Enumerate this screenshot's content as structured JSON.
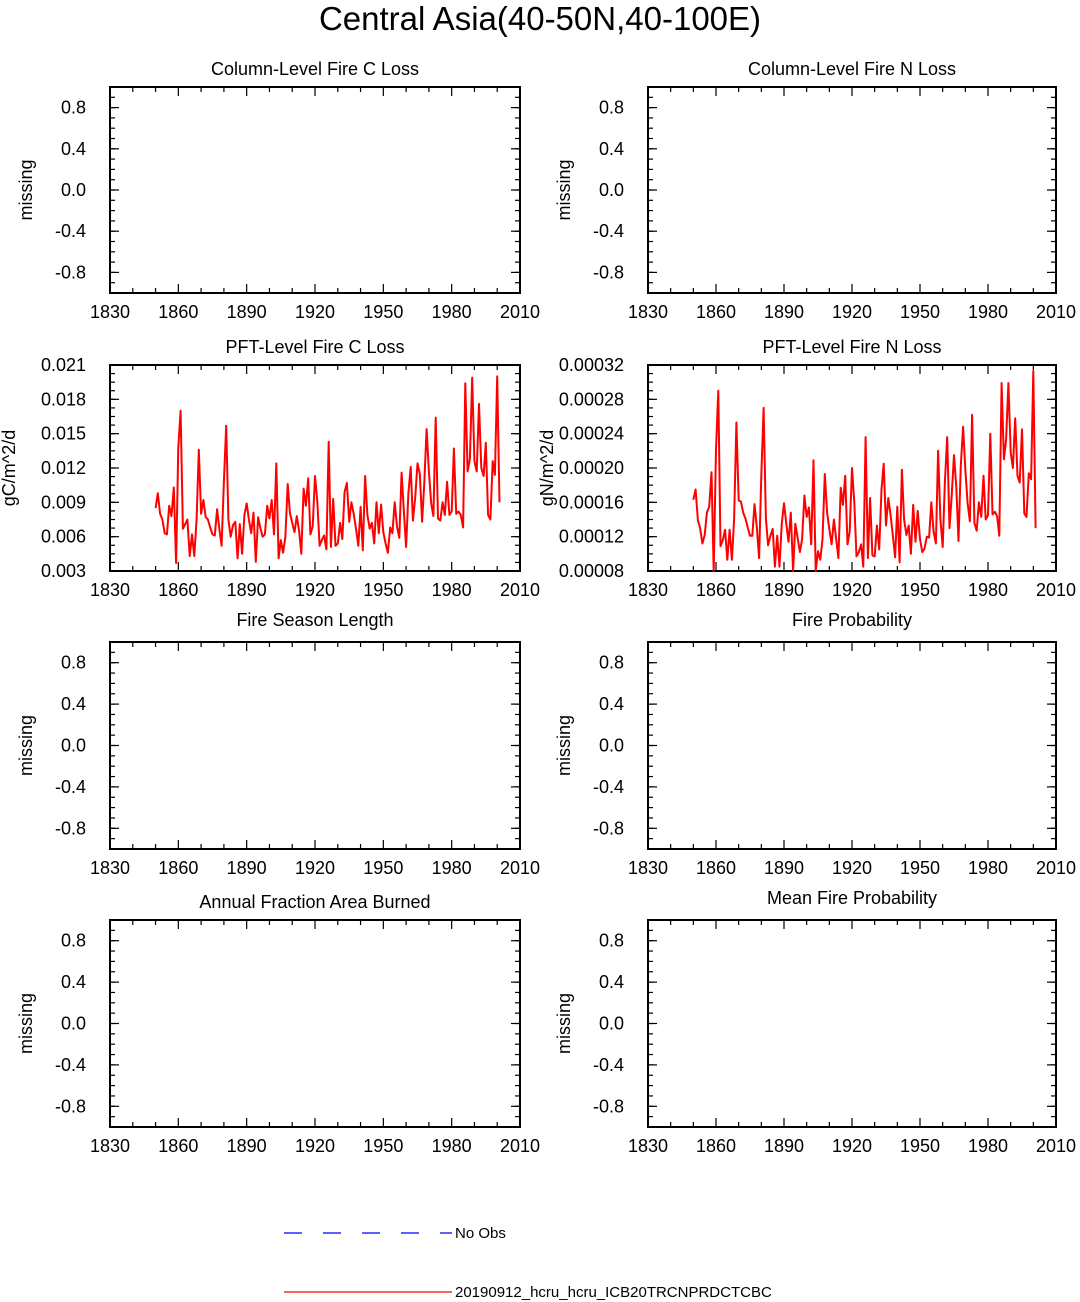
{
  "page_title": "Central Asia(40-50N,40-100E)",
  "legend": {
    "items": [
      {
        "label": "No Obs",
        "color": "#0000ff",
        "style": "dashed"
      },
      {
        "label": "20190912_hcru_hcru_ICB20TRCNPRDCTCBC",
        "color": "#ff0000",
        "style": "solid"
      }
    ]
  },
  "colors": {
    "series": "#ff0000",
    "obs": "#0000ff",
    "axis": "#000000"
  },
  "chart_data": [
    {
      "type": "line",
      "title": "Column-Level Fire C Loss",
      "ylabel": "missing",
      "xlim": [
        1830,
        2010
      ],
      "ylim": [
        -1,
        1
      ],
      "xticks": [
        "1830",
        "1860",
        "1890",
        "1920",
        "1950",
        "1980",
        "2010"
      ],
      "yticks": [
        "0.8",
        "0.4",
        "0.0",
        "-0.4",
        "-0.8"
      ],
      "series": []
    },
    {
      "type": "line",
      "title": "Column-Level Fire N Loss",
      "ylabel": "missing",
      "xlim": [
        1830,
        2010
      ],
      "ylim": [
        -1,
        1
      ],
      "xticks": [
        "1830",
        "1860",
        "1890",
        "1920",
        "1950",
        "1980",
        "2010"
      ],
      "yticks": [
        "0.8",
        "0.4",
        "0.0",
        "-0.4",
        "-0.8"
      ],
      "series": []
    },
    {
      "type": "line",
      "title": "PFT-Level Fire C Loss",
      "ylabel": "gC/m^2/d",
      "xlim": [
        1830,
        2010
      ],
      "ylim": [
        0.003,
        0.021
      ],
      "xticks": [
        "1830",
        "1860",
        "1890",
        "1920",
        "1950",
        "1980",
        "2010"
      ],
      "yticks": [
        "0.021",
        "0.018",
        "0.015",
        "0.012",
        "0.009",
        "0.006",
        "0.003"
      ],
      "x_start": 1850,
      "series": [
        {
          "values": [
            0.0085,
            0.0098,
            0.008,
            0.0075,
            0.0063,
            0.0062,
            0.0087,
            0.0078,
            0.0103,
            0.0037,
            0.0138,
            0.017,
            0.0067,
            0.0071,
            0.0075,
            0.0043,
            0.0062,
            0.0043,
            0.0075,
            0.0136,
            0.008,
            0.0092,
            0.0077,
            0.0075,
            0.0068,
            0.0062,
            0.0061,
            0.0084,
            0.0067,
            0.0052,
            0.0108,
            0.0157,
            0.0075,
            0.006,
            0.007,
            0.0073,
            0.0041,
            0.0071,
            0.0045,
            0.0079,
            0.0089,
            0.0075,
            0.0063,
            0.0081,
            0.0038,
            0.0077,
            0.0068,
            0.006,
            0.0062,
            0.0087,
            0.0076,
            0.0092,
            0.0062,
            0.0124,
            0.0041,
            0.0057,
            0.0046,
            0.006,
            0.0106,
            0.0081,
            0.0072,
            0.0064,
            0.0078,
            0.0065,
            0.0045,
            0.0102,
            0.0087,
            0.0111,
            0.0062,
            0.0069,
            0.0113,
            0.0091,
            0.0052,
            0.0057,
            0.0061,
            0.0049,
            0.0143,
            0.0051,
            0.0093,
            0.0052,
            0.0054,
            0.0072,
            0.0058,
            0.0099,
            0.0107,
            0.0073,
            0.009,
            0.008,
            0.0067,
            0.0052,
            0.0086,
            0.0048,
            0.0113,
            0.0079,
            0.0067,
            0.0072,
            0.0054,
            0.009,
            0.0063,
            0.0088,
            0.0064,
            0.0054,
            0.0046,
            0.0068,
            0.0063,
            0.009,
            0.0069,
            0.0059,
            0.0116,
            0.0083,
            0.0051,
            0.0098,
            0.0121,
            0.0074,
            0.0094,
            0.0124,
            0.0115,
            0.0073,
            0.0107,
            0.0154,
            0.0117,
            0.0089,
            0.0078,
            0.0164,
            0.0076,
            0.0074,
            0.009,
            0.0079,
            0.0108,
            0.0079,
            0.0082,
            0.0137,
            0.008,
            0.0082,
            0.0079,
            0.0068,
            0.0194,
            0.0117,
            0.0128,
            0.0199,
            0.0126,
            0.0117,
            0.0176,
            0.012,
            0.0113,
            0.0142,
            0.0079,
            0.0075,
            0.0126,
            0.0114,
            0.02,
            0.009
          ]
        }
      ]
    },
    {
      "type": "line",
      "title": "PFT-Level Fire N Loss",
      "ylabel": "gN/m^2/d",
      "xlim": [
        1830,
        2010
      ],
      "ylim": [
        8e-05,
        0.00032
      ],
      "xticks": [
        "1830",
        "1860",
        "1890",
        "1920",
        "1950",
        "1980",
        "2010"
      ],
      "yticks": [
        "0.00032",
        "0.00028",
        "0.00024",
        "0.00020",
        "0.00016",
        "0.00012",
        "0.00008"
      ],
      "x_start": 1850,
      "series": [
        {
          "values": [
            0.000163,
            0.000175,
            0.000139,
            0.00013,
            0.000112,
            0.000122,
            0.000148,
            0.000155,
            0.000195,
            8e-05,
            0.000222,
            0.00029,
            0.000109,
            0.000116,
            0.000128,
            9.3e-05,
            0.000128,
            9.3e-05,
            0.00014,
            0.000253,
            0.000162,
            0.000161,
            0.000148,
            0.000141,
            0.000131,
            0.000121,
            0.000121,
            0.000158,
            0.000131,
            9.5e-05,
            0.000191,
            0.00027,
            0.000141,
            0.00011,
            0.000121,
            0.000129,
            8.5e-05,
            0.000121,
            8.5e-05,
            0.000134,
            0.000159,
            0.000135,
            0.000114,
            0.000148,
            8e-05,
            0.000135,
            0.000119,
            0.000102,
            0.000117,
            0.000168,
            0.000143,
            0.000154,
            0.000111,
            0.000209,
            8e-05,
            0.000103,
            9.3e-05,
            0.000117,
            0.000193,
            0.000148,
            0.000129,
            0.000111,
            0.00014,
            0.000118,
            9.5e-05,
            0.000177,
            0.000157,
            0.000191,
            0.000111,
            0.000126,
            0.0002,
            0.00016,
            9.7e-05,
            0.000102,
            0.000111,
            8.5e-05,
            0.000236,
            9.5e-05,
            0.000165,
            9.8e-05,
            9.7e-05,
            0.000133,
            0.000105,
            0.000175,
            0.000205,
            0.000133,
            0.000165,
            0.000146,
            0.000122,
            9.6e-05,
            0.000155,
            9e-05,
            0.000198,
            0.00014,
            0.000122,
            0.000133,
            0.0001,
            0.000157,
            0.000114,
            0.00015,
            0.000117,
            0.000102,
            0.000106,
            0.00012,
            0.000119,
            0.00016,
            0.000126,
            0.000112,
            0.00022,
            0.00014,
            0.000108,
            0.000184,
            0.000236,
            0.00013,
            0.000168,
            0.000215,
            0.000178,
            0.000115,
            0.000203,
            0.000248,
            0.000199,
            0.000159,
            0.000138,
            0.000262,
            0.000136,
            0.000127,
            0.00016,
            0.000143,
            0.000191,
            0.00014,
            0.000145,
            0.00024,
            0.000146,
            0.000149,
            0.000144,
            0.000121,
            0.000299,
            0.00021,
            0.000233,
            0.000299,
            0.000218,
            0.0002,
            0.000258,
            0.000191,
            0.000183,
            0.000245,
            0.000147,
            0.000143,
            0.000194,
            0.000187,
            0.000313,
            0.00013
          ]
        }
      ]
    },
    {
      "type": "line",
      "title": "Fire Season Length",
      "ylabel": "missing",
      "xlim": [
        1830,
        2010
      ],
      "ylim": [
        -1,
        1
      ],
      "xticks": [
        "1830",
        "1860",
        "1890",
        "1920",
        "1950",
        "1980",
        "2010"
      ],
      "yticks": [
        "0.8",
        "0.4",
        "0.0",
        "-0.4",
        "-0.8"
      ],
      "series": []
    },
    {
      "type": "line",
      "title": "Fire Probability",
      "ylabel": "missing",
      "xlim": [
        1830,
        2010
      ],
      "ylim": [
        -1,
        1
      ],
      "xticks": [
        "1830",
        "1860",
        "1890",
        "1920",
        "1950",
        "1980",
        "2010"
      ],
      "yticks": [
        "0.8",
        "0.4",
        "0.0",
        "-0.4",
        "-0.8"
      ],
      "series": []
    },
    {
      "type": "line",
      "title": "Annual Fraction Area Burned",
      "ylabel": "missing",
      "xlim": [
        1830,
        2010
      ],
      "ylim": [
        -1,
        1
      ],
      "xticks": [
        "1830",
        "1860",
        "1890",
        "1920",
        "1950",
        "1980",
        "2010"
      ],
      "yticks": [
        "0.8",
        "0.4",
        "0.0",
        "-0.4",
        "-0.8"
      ],
      "series": []
    },
    {
      "type": "line",
      "title": "Mean Fire Probability",
      "ylabel": "missing",
      "xlim": [
        1830,
        2010
      ],
      "ylim": [
        -1,
        1
      ],
      "xticks": [
        "1830",
        "1860",
        "1890",
        "1920",
        "1950",
        "1980",
        "2010"
      ],
      "yticks": [
        "0.8",
        "0.4",
        "0.0",
        "-0.4",
        "-0.8"
      ],
      "series": []
    }
  ]
}
